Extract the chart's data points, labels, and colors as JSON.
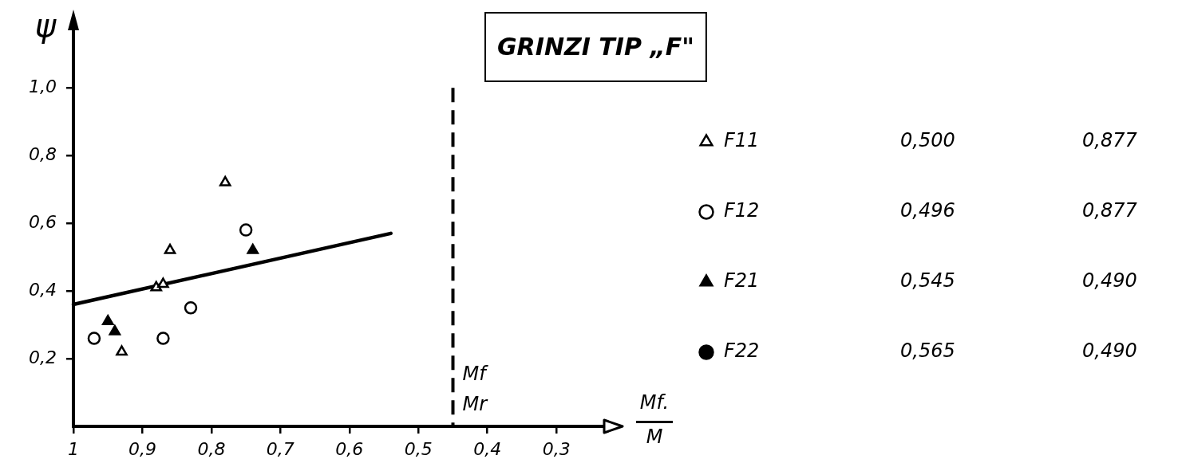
{
  "chart_data": {
    "type": "scatter",
    "title": "GRINZI TIP „F\"",
    "xlabel": "Mf.\nM",
    "ylabel": "ψ",
    "xlim": [
      1,
      0.21
    ],
    "ylim": [
      0,
      1.2
    ],
    "xticks": [
      1,
      {
        "value": 0.9,
        "label": "0,9"
      },
      {
        "value": 0.8,
        "label": "0,8"
      },
      {
        "value": 0.7,
        "label": "0,7"
      },
      {
        "value": 0.6,
        "label": "0,6"
      },
      {
        "value": 0.5,
        "label": "0,5"
      },
      {
        "value": 0.4,
        "label": "0,4"
      },
      {
        "value": 0.3,
        "label": "0,3"
      }
    ],
    "yticks": [
      {
        "value": 0.2,
        "label": "0,2"
      },
      {
        "value": 0.4,
        "label": "0,4"
      },
      {
        "value": 0.6,
        "label": "0,6"
      },
      {
        "value": 0.8,
        "label": "0,8"
      },
      {
        "value": 1.0,
        "label": "1,0"
      }
    ],
    "series": [
      {
        "name": "F11",
        "color": "#000000",
        "marker": "triangle",
        "x": [
          0.78,
          0.86,
          0.88,
          0.87,
          0.93
        ],
        "values": [
          0.72,
          0.52,
          0.41,
          0.42,
          0.22
        ]
      },
      {
        "name": "F12",
        "color": "#000000",
        "marker": "circle",
        "x": [
          0.97,
          0.87,
          0.83,
          0.75
        ],
        "values": [
          0.26,
          0.26,
          0.35,
          0.58
        ]
      },
      {
        "name": "F21",
        "color": "#000000",
        "marker": "triangle",
        "x": [
          0.95,
          0.94,
          0.74
        ],
        "values": [
          0.31,
          0.28,
          0.52
        ]
      },
      {
        "name": "F22",
        "color": "#000000",
        "marker": "circle"
      },
      {
        "type": "line",
        "color": "#000000",
        "marker": "none",
        "x": [
          1,
          0.54
        ],
        "values": [
          0.36,
          0.57
        ]
      }
    ],
    "ref_lines": [
      {
        "axis": "x",
        "value": 0.45,
        "label": "Mf\nMr",
        "line_style": "dashed"
      }
    ],
    "annotations": [
      "0,500",
      "0,877",
      "0,496",
      "0,877",
      "0,545",
      "0,490",
      "0,565",
      "0,490"
    ],
    "legend": "right",
    "grid": false
  }
}
